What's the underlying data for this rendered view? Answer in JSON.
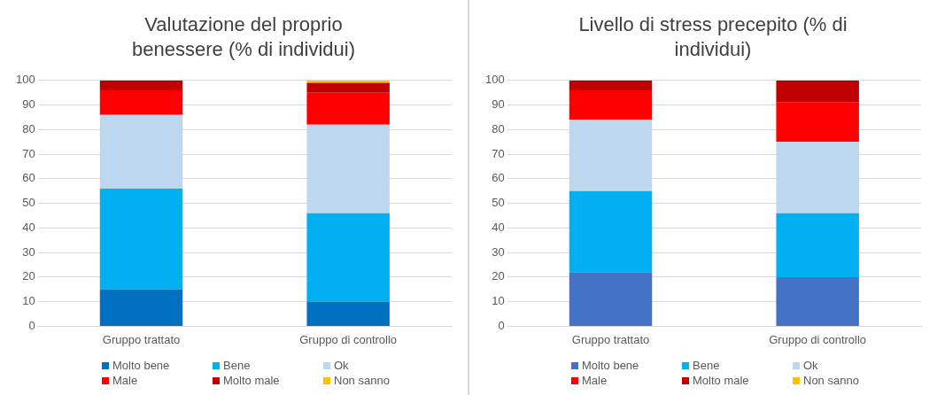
{
  "chart_data": [
    {
      "type": "bar",
      "title": "Valutazione del proprio benessere (% di individui)",
      "stacked": true,
      "categories": [
        "Gruppo trattato",
        "Gruppo di controllo"
      ],
      "ylim": [
        0,
        100
      ],
      "yticks": [
        0,
        10,
        20,
        30,
        40,
        50,
        60,
        70,
        80,
        90,
        100
      ],
      "grid": "y",
      "legend": "bottom",
      "series": [
        {
          "name": "Molto bene",
          "color": "#0070c0",
          "values": [
            15,
            10
          ]
        },
        {
          "name": "Bene",
          "color": "#00b0f0",
          "values": [
            41,
            36
          ]
        },
        {
          "name": "Ok",
          "color": "#bdd7ee",
          "values": [
            30,
            36
          ]
        },
        {
          "name": "Male",
          "color": "#ff0000",
          "values": [
            10,
            13
          ]
        },
        {
          "name": "Molto male",
          "color": "#c00000",
          "values": [
            4,
            4
          ]
        },
        {
          "name": "Non sanno",
          "color": "#ffc000",
          "values": [
            0,
            1
          ]
        }
      ]
    },
    {
      "type": "bar",
      "title": "Livello di stress precepito (% di individui)",
      "stacked": true,
      "categories": [
        "Gruppo trattato",
        "Gruppo di controllo"
      ],
      "ylim": [
        0,
        100
      ],
      "yticks": [
        0,
        10,
        20,
        30,
        40,
        50,
        60,
        70,
        80,
        90,
        100
      ],
      "grid": "y",
      "legend": "bottom",
      "series": [
        {
          "name": "Molto bene",
          "color": "#4472c4",
          "values": [
            22,
            20
          ]
        },
        {
          "name": "Bene",
          "color": "#00b0f0",
          "values": [
            33,
            26
          ]
        },
        {
          "name": "Ok",
          "color": "#bdd7ee",
          "values": [
            29,
            29
          ]
        },
        {
          "name": "Male",
          "color": "#ff0000",
          "values": [
            12,
            16
          ]
        },
        {
          "name": "Molto male",
          "color": "#c00000",
          "values": [
            4,
            9
          ]
        },
        {
          "name": "Non sanno",
          "color": "#ffc000",
          "values": [
            0,
            0
          ]
        }
      ]
    }
  ]
}
